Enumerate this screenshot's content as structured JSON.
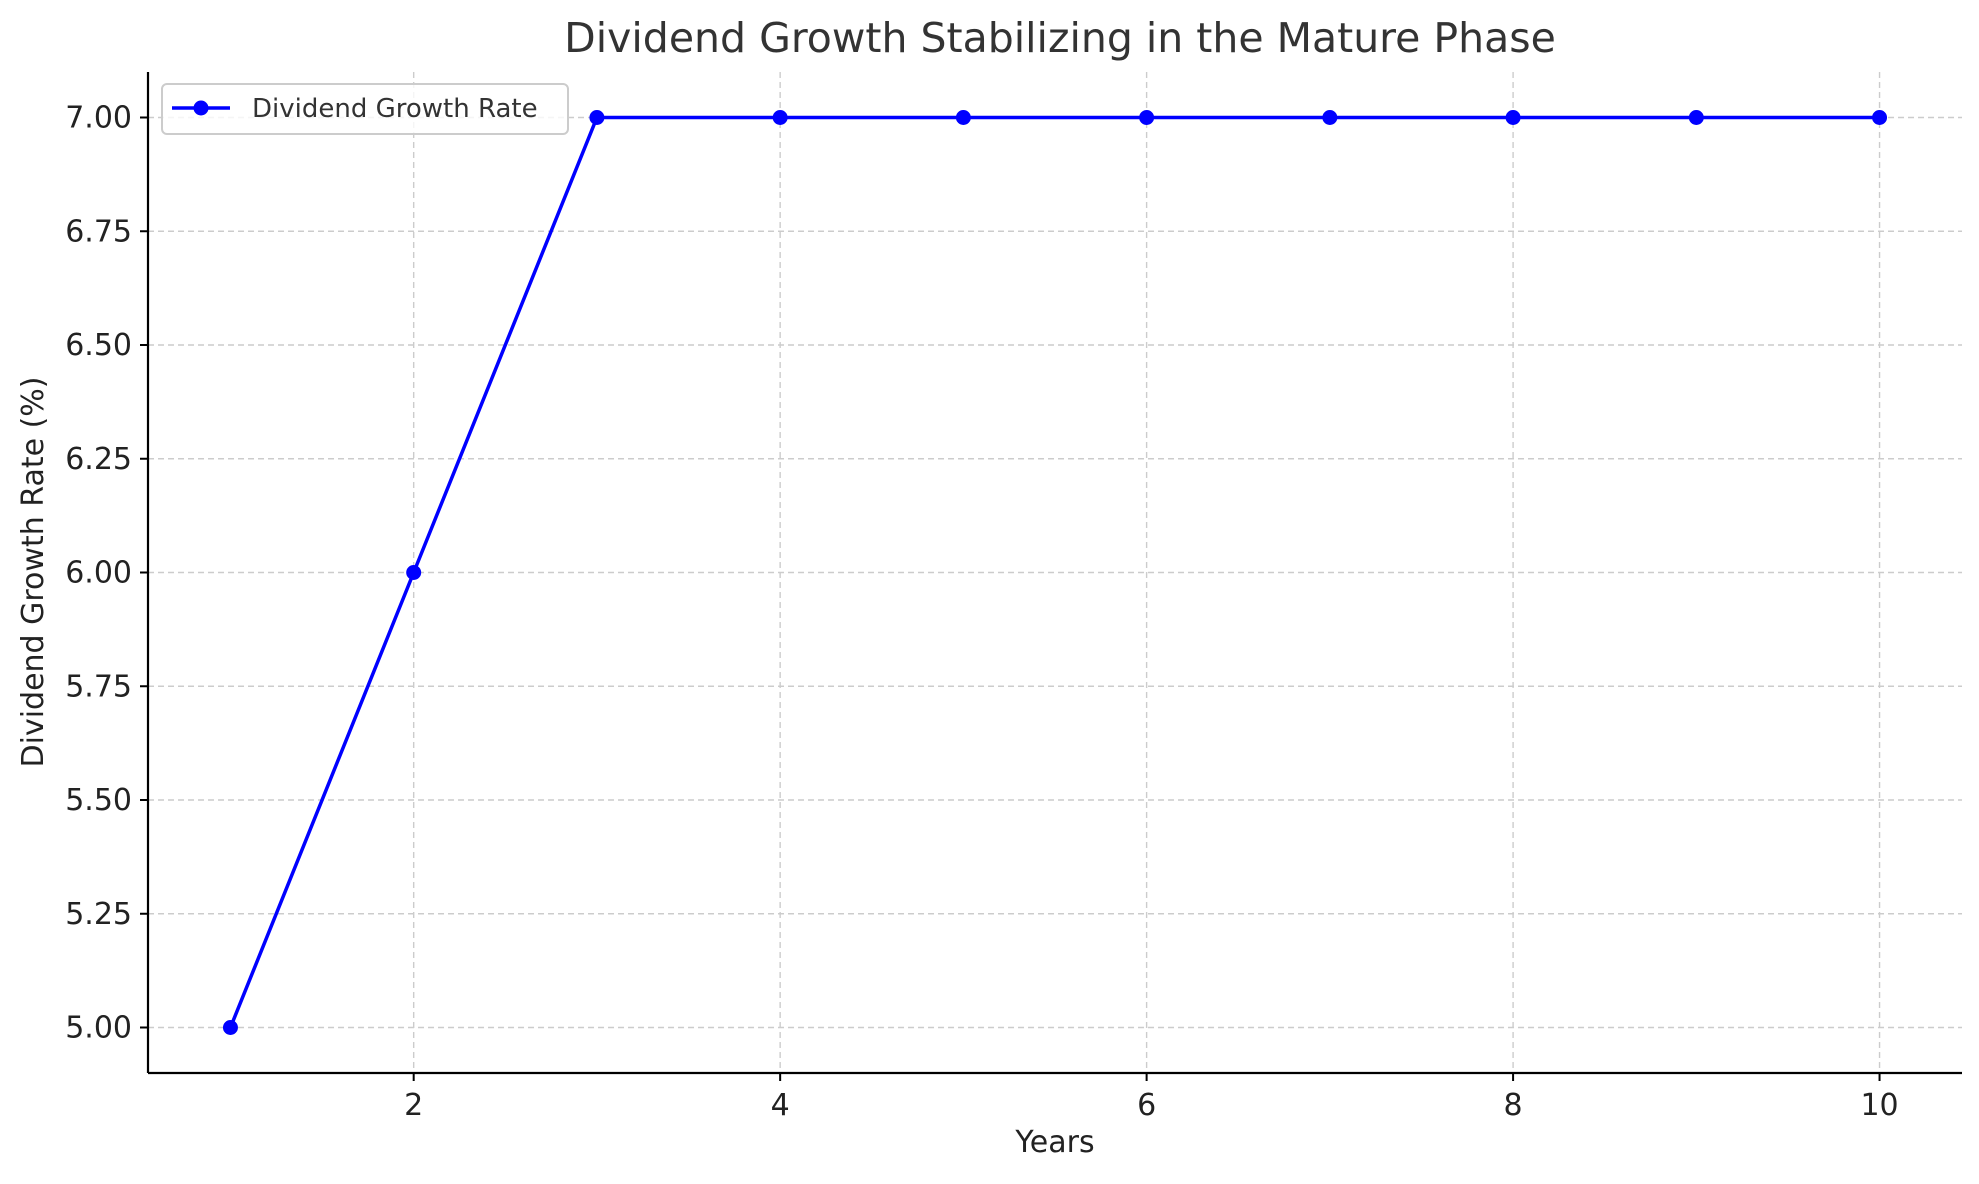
{
  "chart_data": {
    "type": "line",
    "title": "Dividend Growth Stabilizing in the Mature Phase",
    "xlabel": "Years",
    "ylabel": "Dividend Growth Rate (%)",
    "x": [
      1,
      2,
      3,
      4,
      5,
      6,
      7,
      8,
      9,
      10
    ],
    "series": [
      {
        "name": "Dividend Growth Rate",
        "values": [
          5.0,
          6.0,
          7.0,
          7.0,
          7.0,
          7.0,
          7.0,
          7.0,
          7.0,
          7.0
        ],
        "color": "#0000ff",
        "marker": "circle"
      }
    ],
    "xlim": [
      0.55,
      10.45
    ],
    "ylim": [
      4.9,
      7.1
    ],
    "xticks": [
      2,
      4,
      6,
      8,
      10
    ],
    "xtick_labels": [
      "2",
      "4",
      "6",
      "8",
      "10"
    ],
    "yticks": [
      5.0,
      5.25,
      5.5,
      5.75,
      6.0,
      6.25,
      6.5,
      6.75,
      7.0
    ],
    "ytick_labels": [
      "5.00",
      "5.25",
      "5.50",
      "5.75",
      "6.00",
      "6.25",
      "6.50",
      "6.75",
      "7.00"
    ],
    "grid": true,
    "grid_color": "#cccccc",
    "legend_position": "top-left",
    "axis_color": "#000000",
    "text_color": "#333333"
  }
}
